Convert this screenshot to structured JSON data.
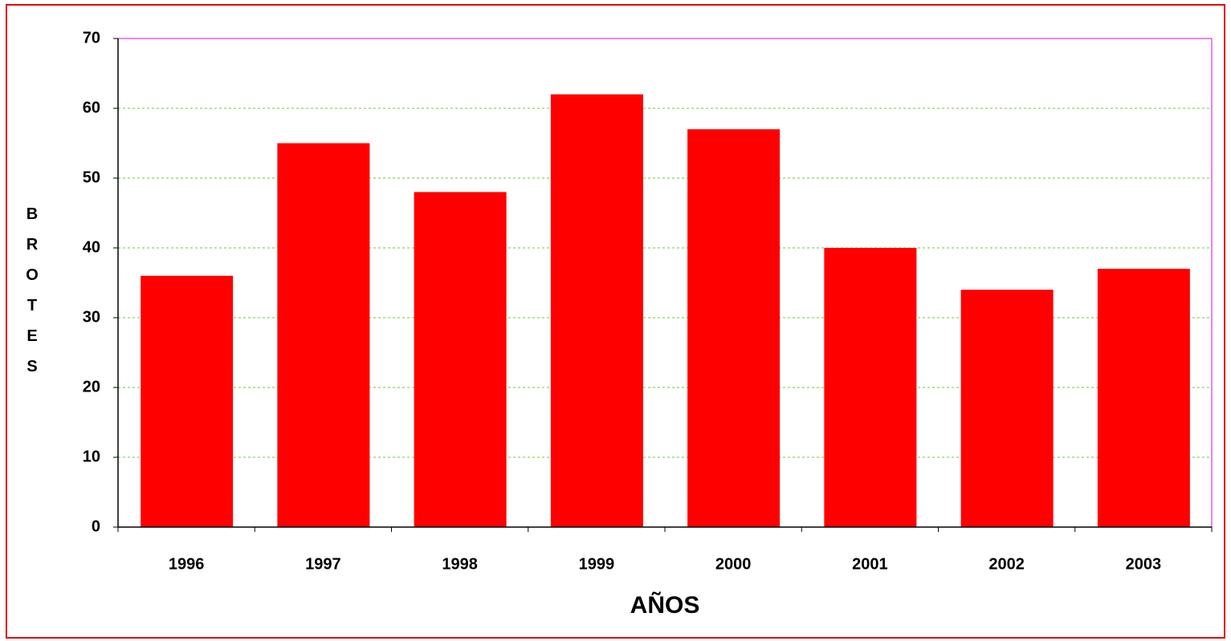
{
  "chart_data": {
    "type": "bar",
    "categories": [
      "1996",
      "1997",
      "1998",
      "1999",
      "2000",
      "2001",
      "2002",
      "2003"
    ],
    "values": [
      36,
      55,
      48,
      62,
      57,
      40,
      34,
      37
    ],
    "color": "#ff0000",
    "x_label": "AÑOS",
    "y_label": "BROTES",
    "ylim": [
      0,
      70
    ],
    "yticks": [
      0,
      10,
      20,
      30,
      40,
      50,
      60,
      70
    ],
    "grid": true
  }
}
